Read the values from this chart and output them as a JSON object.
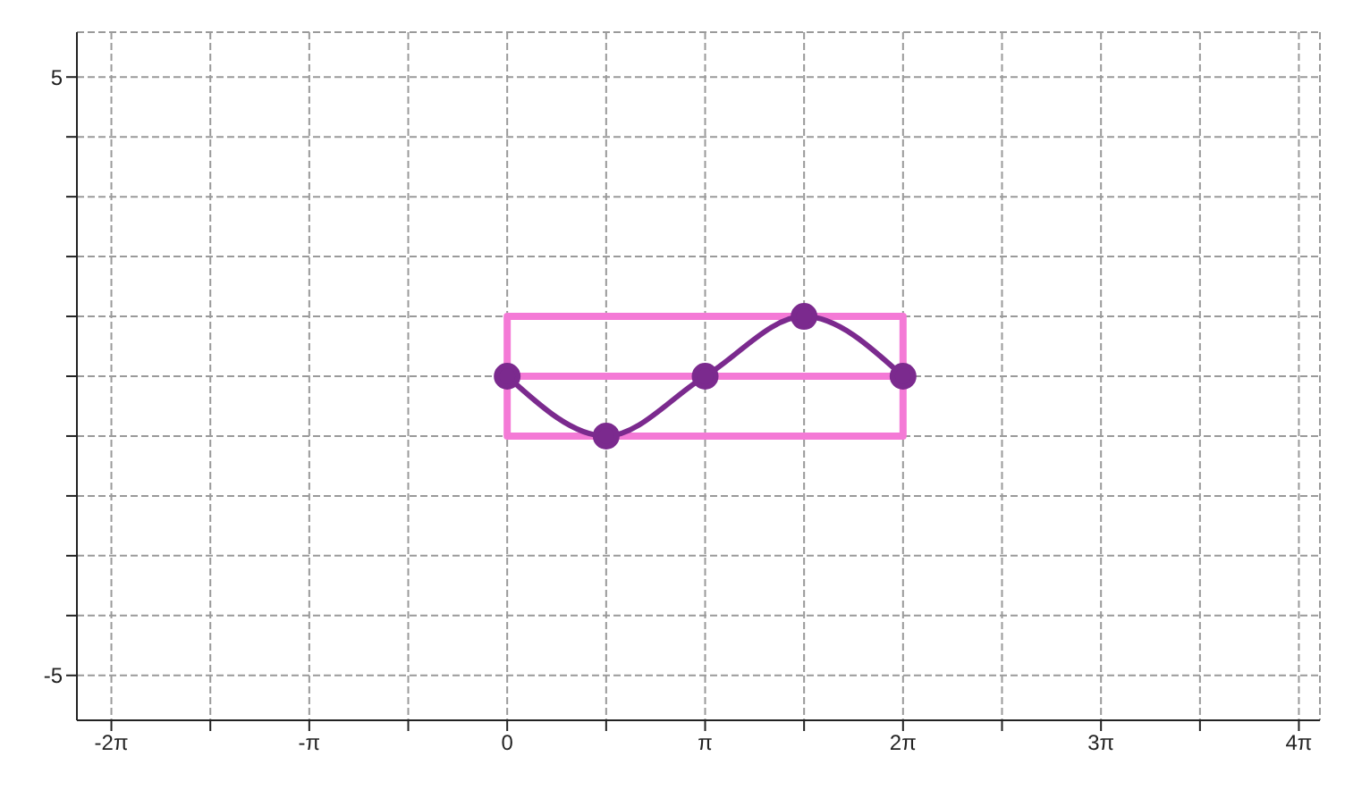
{
  "chart_data": {
    "type": "line",
    "grid": true,
    "marker": "circle",
    "line_style": "solid",
    "xlim": [
      -6.83,
      12.9
    ],
    "ylim": [
      -5.75,
      5.75
    ],
    "xticks": [
      {
        "value": -6.283,
        "label": "-2π"
      },
      {
        "value": -4.712,
        "label": null
      },
      {
        "value": -3.1416,
        "label": "-π"
      },
      {
        "value": -1.5708,
        "label": null
      },
      0,
      {
        "value": 1.5708,
        "label": null
      },
      {
        "value": 3.1416,
        "label": "π"
      },
      {
        "value": 4.712,
        "label": null
      },
      {
        "value": 6.283,
        "label": "2π"
      },
      {
        "value": 7.854,
        "label": null
      },
      {
        "value": 9.425,
        "label": "3π"
      },
      {
        "value": 10.996,
        "label": null
      },
      {
        "value": 12.566,
        "label": "4π"
      }
    ],
    "yticks": [
      -5,
      {
        "value": -4,
        "label": null
      },
      {
        "value": -3,
        "label": null
      },
      {
        "value": -2,
        "label": null
      },
      {
        "value": -1,
        "label": null
      },
      {
        "value": 0,
        "label": null
      },
      {
        "value": 1,
        "label": null
      },
      {
        "value": 2,
        "label": null
      },
      {
        "value": 3,
        "label": null
      },
      {
        "value": 4,
        "label": null
      },
      5
    ],
    "series": [
      {
        "color": "#f47ad6",
        "marker": "none",
        "x": [
          6.283,
          0,
          0,
          6.283,
          6.283,
          0,
          0
        ],
        "values": [
          0,
          0,
          1,
          1,
          -1,
          -1,
          0
        ]
      },
      {
        "color": "#7b2a8e",
        "x": [
          0,
          1.5708,
          3.1416,
          4.712,
          6.283
        ],
        "values": [
          0,
          -1,
          0,
          1,
          0
        ]
      }
    ]
  }
}
